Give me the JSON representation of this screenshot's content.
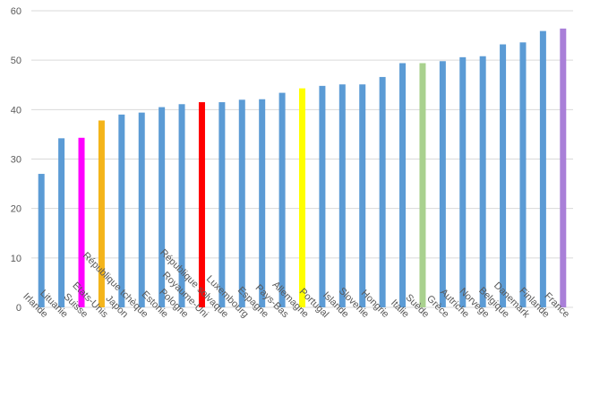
{
  "chart_data": {
    "type": "bar",
    "title": "",
    "xlabel": "",
    "ylabel": "",
    "ylim": [
      0,
      60
    ],
    "yticks": [
      0,
      10,
      20,
      30,
      40,
      50,
      60
    ],
    "grid": "horizontal",
    "legend": "none",
    "default_color": "#5B9BD5",
    "categories": [
      "Irlande",
      "Lituanie",
      "Suisse",
      "Etats-Unis",
      "Japon",
      "République tchèque",
      "Estonie",
      "Pologne",
      "Royaume-Uni",
      "République solvaque",
      "Luxembourg",
      "Espagne",
      "Pays-Bas",
      "Allemagne",
      "Portugal",
      "Islande",
      "Slovenie",
      "Hongrie",
      "Italie",
      "Suède",
      "Grèce",
      "Autriche",
      "Norvege",
      "Belgique",
      "Danemark",
      "Finlande",
      "France"
    ],
    "values": [
      27,
      34.2,
      34.3,
      37.8,
      39,
      39.4,
      40.5,
      41.1,
      41.5,
      41.5,
      42,
      42.1,
      43.4,
      44.3,
      44.8,
      45.1,
      45.1,
      46.6,
      49.4,
      49.4,
      49.8,
      50.6,
      50.8,
      53.2,
      53.6,
      55.9,
      56.4
    ],
    "colors": [
      "#5B9BD5",
      "#5B9BD5",
      "#FF00FF",
      "#F4B41A",
      "#5B9BD5",
      "#5B9BD5",
      "#5B9BD5",
      "#5B9BD5",
      "#FF0000",
      "#5B9BD5",
      "#5B9BD5",
      "#5B9BD5",
      "#5B9BD5",
      "#FFFF00",
      "#5B9BD5",
      "#5B9BD5",
      "#5B9BD5",
      "#5B9BD5",
      "#5B9BD5",
      "#A9D18E",
      "#5B9BD5",
      "#5B9BD5",
      "#5B9BD5",
      "#5B9BD5",
      "#5B9BD5",
      "#5B9BD5",
      "#A97FD8"
    ]
  }
}
